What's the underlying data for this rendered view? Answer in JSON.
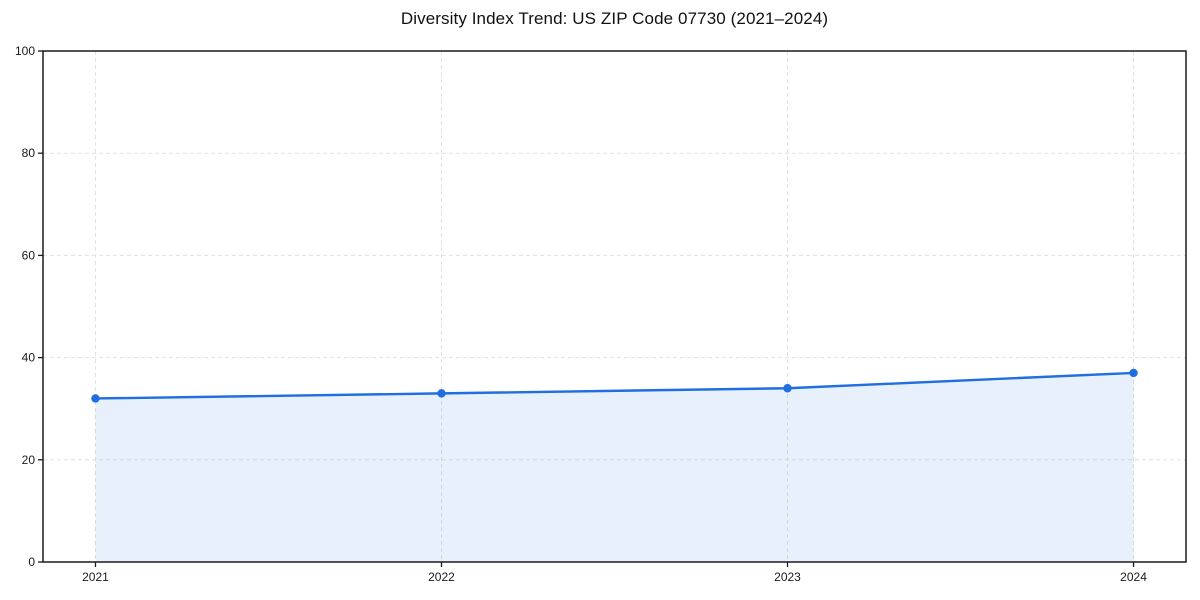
{
  "chart_data": {
    "type": "line",
    "title": "Diversity Index Trend: US ZIP Code 07730 (2021–2024)",
    "categories": [
      "2021",
      "2022",
      "2023",
      "2024"
    ],
    "series": [
      {
        "name": "Diversity Index",
        "values": [
          32,
          33,
          34,
          37
        ]
      }
    ],
    "xlabel": "",
    "ylabel": "",
    "ylim": [
      0,
      100
    ],
    "yticks": [
      0,
      20,
      40,
      60,
      80,
      100
    ],
    "grid": "dashed",
    "legend_position": "none",
    "area_fill": true,
    "marker": "circle",
    "colors": {
      "line": "#1f6fe0",
      "fill": "#1f6fe0",
      "fill_opacity": 0.1,
      "grid": "#e2e2e2",
      "spine": "#1a1a1a",
      "tick_text": "#1a1a1a",
      "background": "#ffffff"
    }
  }
}
